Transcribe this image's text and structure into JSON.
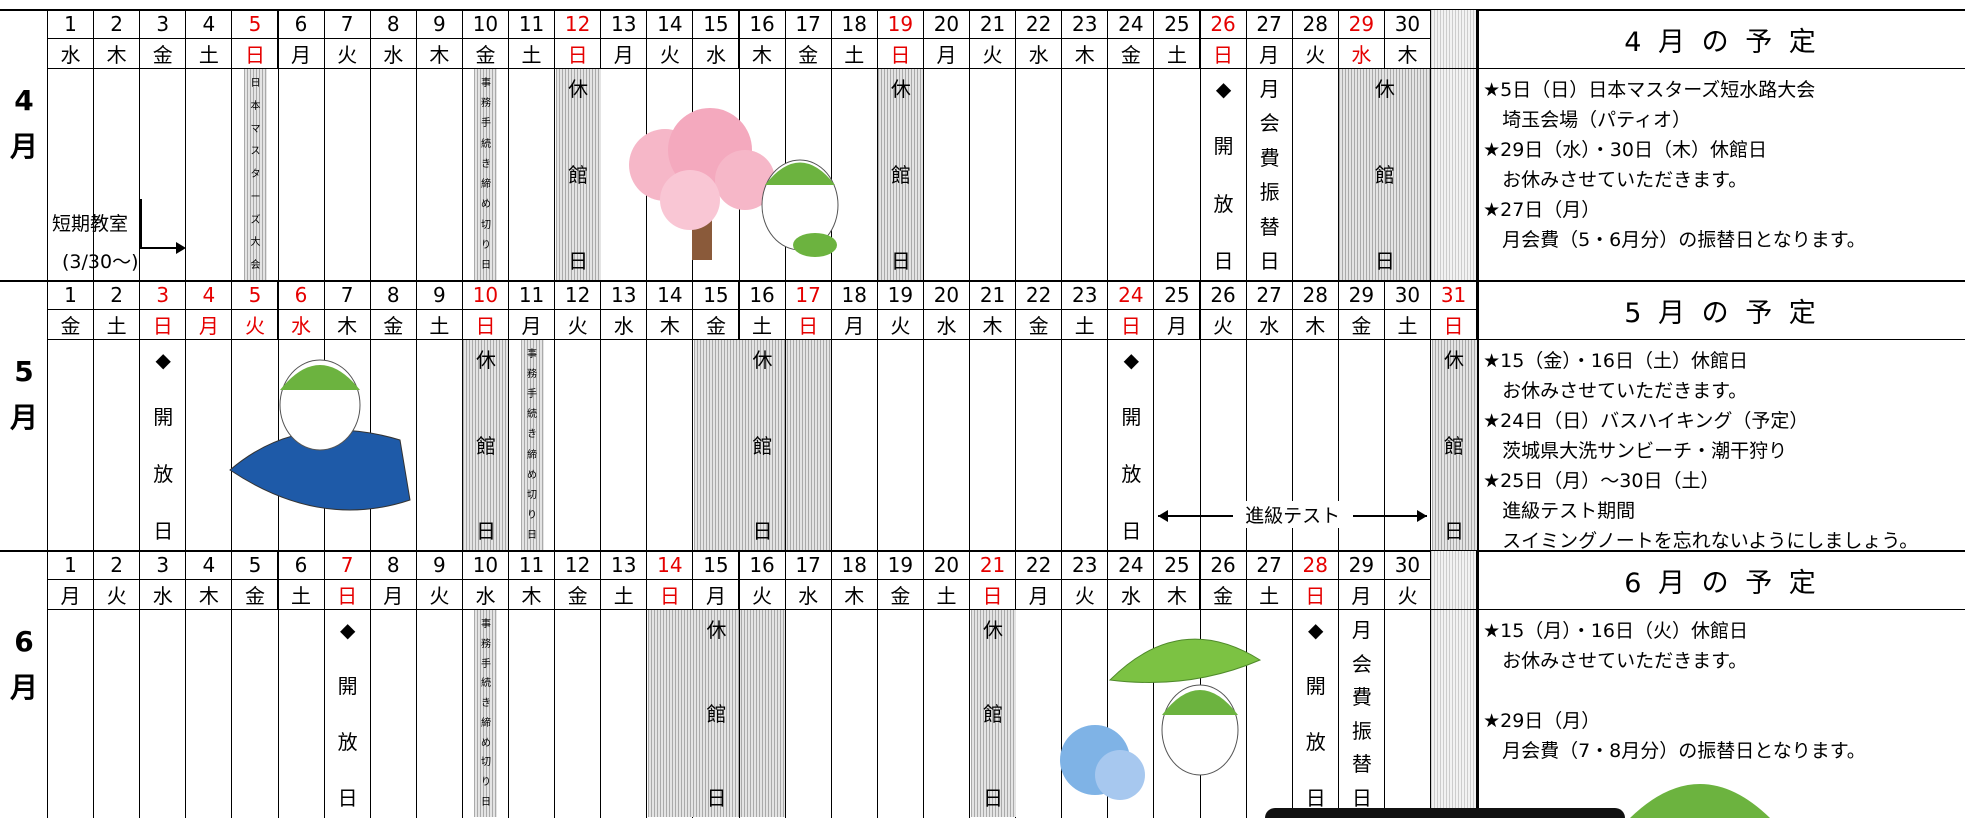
{
  "calendar": {
    "months": [
      {
        "month": "4",
        "unit": "月",
        "days": [
          {
            "n": 1,
            "w": "水"
          },
          {
            "n": 2,
            "w": "木"
          },
          {
            "n": 3,
            "w": "金"
          },
          {
            "n": 4,
            "w": "土"
          },
          {
            "n": 5,
            "w": "日",
            "red": true,
            "note": "日本マスターズ大会",
            "small": true,
            "shade": true
          },
          {
            "n": 6,
            "w": "月"
          },
          {
            "n": 7,
            "w": "火"
          },
          {
            "n": 8,
            "w": "水"
          },
          {
            "n": 9,
            "w": "木"
          },
          {
            "n": 10,
            "w": "金",
            "note": "事務手続き締め切り日",
            "small": true,
            "shade": true
          },
          {
            "n": 11,
            "w": "土"
          },
          {
            "n": 12,
            "w": "日",
            "red": true,
            "note": "休館日",
            "shade": true
          },
          {
            "n": 13,
            "w": "月"
          },
          {
            "n": 14,
            "w": "火"
          },
          {
            "n": 15,
            "w": "水"
          },
          {
            "n": 16,
            "w": "木"
          },
          {
            "n": 17,
            "w": "金"
          },
          {
            "n": 18,
            "w": "土"
          },
          {
            "n": 19,
            "w": "日",
            "red": true,
            "note": "休館日",
            "shade": true
          },
          {
            "n": 20,
            "w": "月"
          },
          {
            "n": 21,
            "w": "火"
          },
          {
            "n": 22,
            "w": "水"
          },
          {
            "n": 23,
            "w": "木"
          },
          {
            "n": 24,
            "w": "金"
          },
          {
            "n": 25,
            "w": "土"
          },
          {
            "n": 26,
            "w": "日",
            "red": true,
            "note": "◆開放日"
          },
          {
            "n": 27,
            "w": "月",
            "note": "月会費振替日"
          },
          {
            "n": 28,
            "w": "火"
          },
          {
            "n": 29,
            "w": "水",
            "red": true,
            "note": "休館日",
            "shade": true,
            "span": 2
          },
          {
            "n": 30,
            "w": "木"
          }
        ],
        "extra": [
          "短期教室",
          "(3/30～)"
        ],
        "plan": {
          "title": "4 月 の 予 定",
          "lines": [
            "★5日（日）日本マスターズ短水路大会",
            "　埼玉会場（パティオ）",
            "★29日（水）・30日（木）休館日",
            "　お休みさせていただきます。",
            "★27日（月）",
            "　月会費（5・6月分）の振替日となります。"
          ]
        }
      },
      {
        "month": "5",
        "unit": "月",
        "days": [
          {
            "n": 1,
            "w": "金"
          },
          {
            "n": 2,
            "w": "土"
          },
          {
            "n": 3,
            "w": "日",
            "red": true,
            "note": "◆開放日"
          },
          {
            "n": 4,
            "w": "月",
            "red": true
          },
          {
            "n": 5,
            "w": "火",
            "red": true
          },
          {
            "n": 6,
            "w": "水",
            "red": true
          },
          {
            "n": 7,
            "w": "木"
          },
          {
            "n": 8,
            "w": "金"
          },
          {
            "n": 9,
            "w": "土"
          },
          {
            "n": 10,
            "w": "日",
            "red": true,
            "note": "休館日",
            "shade": true
          },
          {
            "n": 11,
            "w": "月",
            "note": "事務手続き締め切り日",
            "small": true,
            "shade": true
          },
          {
            "n": 12,
            "w": "火"
          },
          {
            "n": 13,
            "w": "水"
          },
          {
            "n": 14,
            "w": "木"
          },
          {
            "n": 15,
            "w": "金",
            "note": "休館日",
            "shade": true,
            "span": 3
          },
          {
            "n": 16,
            "w": "土"
          },
          {
            "n": 17,
            "w": "日",
            "red": true
          },
          {
            "n": 18,
            "w": "月"
          },
          {
            "n": 19,
            "w": "火"
          },
          {
            "n": 20,
            "w": "水"
          },
          {
            "n": 21,
            "w": "木"
          },
          {
            "n": 22,
            "w": "金"
          },
          {
            "n": 23,
            "w": "土"
          },
          {
            "n": 24,
            "w": "日",
            "red": true,
            "note": "◆開放日"
          },
          {
            "n": 25,
            "w": "月"
          },
          {
            "n": 26,
            "w": "火"
          },
          {
            "n": 27,
            "w": "水"
          },
          {
            "n": 28,
            "w": "木"
          },
          {
            "n": 29,
            "w": "金"
          },
          {
            "n": 30,
            "w": "土"
          },
          {
            "n": 31,
            "w": "日",
            "red": true,
            "note": "休館日",
            "shade": true
          }
        ],
        "range": "進級テスト",
        "plan": {
          "title": "5 月 の 予 定",
          "lines": [
            "★15（金）・16日（土）休館日",
            "　お休みさせていただきます。",
            "★24日（日）バスハイキング（予定）",
            "　茨城県大洗サンビーチ・潮干狩り",
            "★25日（月）～30日（土）",
            "　進級テスト期間",
            "　スイミングノートを忘れないようにしましょう。"
          ]
        }
      },
      {
        "month": "6",
        "unit": "月",
        "days": [
          {
            "n": 1,
            "w": "月"
          },
          {
            "n": 2,
            "w": "火"
          },
          {
            "n": 3,
            "w": "水"
          },
          {
            "n": 4,
            "w": "木"
          },
          {
            "n": 5,
            "w": "金"
          },
          {
            "n": 6,
            "w": "土"
          },
          {
            "n": 7,
            "w": "日",
            "red": true,
            "note": "◆開放日"
          },
          {
            "n": 8,
            "w": "月"
          },
          {
            "n": 9,
            "w": "火"
          },
          {
            "n": 10,
            "w": "水",
            "note": "事務手続き締め切り日",
            "small": true,
            "shade": true
          },
          {
            "n": 11,
            "w": "木"
          },
          {
            "n": 12,
            "w": "金"
          },
          {
            "n": 13,
            "w": "土"
          },
          {
            "n": 14,
            "w": "日",
            "red": true,
            "note": "休館日",
            "shade": true,
            "span": 3
          },
          {
            "n": 15,
            "w": "月"
          },
          {
            "n": 16,
            "w": "火"
          },
          {
            "n": 17,
            "w": "水"
          },
          {
            "n": 18,
            "w": "木"
          },
          {
            "n": 19,
            "w": "金"
          },
          {
            "n": 20,
            "w": "土"
          },
          {
            "n": 21,
            "w": "日",
            "red": true,
            "note": "休館日",
            "shade": true
          },
          {
            "n": 22,
            "w": "月"
          },
          {
            "n": 23,
            "w": "火"
          },
          {
            "n": 24,
            "w": "水"
          },
          {
            "n": 25,
            "w": "木"
          },
          {
            "n": 26,
            "w": "金"
          },
          {
            "n": 27,
            "w": "土"
          },
          {
            "n": 28,
            "w": "日",
            "red": true,
            "note": "◆開放日"
          },
          {
            "n": 29,
            "w": "月",
            "note": "月会費振替日"
          },
          {
            "n": 30,
            "w": "火"
          }
        ],
        "plan": {
          "title": "6 月 の 予 定",
          "lines": [
            "★15（月）・16日（火）休館日",
            "　お休みさせていただきます。",
            "★29日（月）",
            "　月会費（7・8月分）の振替日となります。"
          ]
        }
      }
    ]
  }
}
